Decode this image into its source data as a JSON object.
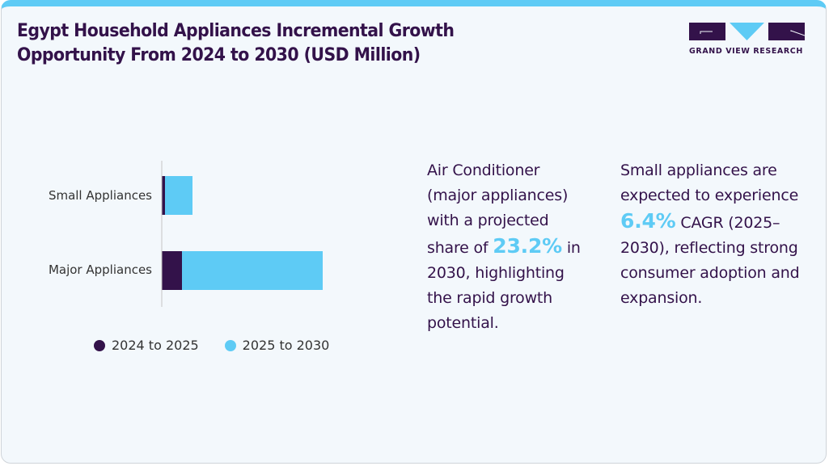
{
  "header": {
    "title_line1": "Egypt Household Appliances Incremental Growth",
    "title_line2": "Opportunity From 2024 to 2030 (USD Million)"
  },
  "logo": {
    "text": "GRAND VIEW RESEARCH",
    "icon": "gvr-logo-icon"
  },
  "colors": {
    "series_2024_2025": "#33124a",
    "series_2025_2030": "#5ecbf5",
    "accent": "#5ecbf5",
    "text_primary": "#33124a"
  },
  "chart_data": {
    "type": "bar",
    "orientation": "horizontal",
    "stacked": true,
    "title": "Egypt Household Appliances Incremental Growth Opportunity From 2024 to 2030 (USD Million)",
    "xlabel": "",
    "ylabel": "",
    "categories": [
      "Small Appliances",
      "Major Appliances"
    ],
    "series": [
      {
        "name": "2024 to 2025",
        "color": "#33124a",
        "values": [
          4,
          25
        ]
      },
      {
        "name": "2025 to 2030",
        "color": "#5ecbf5",
        "values": [
          34,
          174
        ]
      }
    ],
    "value_note": "Values are relative estimates; no axis ticks are shown in the chart",
    "xlim": [
      0,
      200
    ],
    "grid": false,
    "legend_position": "bottom"
  },
  "legend": [
    {
      "label": "2024 to 2025",
      "color": "#33124a"
    },
    {
      "label": "2025 to 2030",
      "color": "#5ecbf5"
    }
  ],
  "insights": [
    {
      "before": "Air Conditioner (major appliances) with a projected share of ",
      "highlight": "23.2%",
      "after": " in 2030, highlighting the rapid growth potential."
    },
    {
      "before": "Small appliances are expected to experience ",
      "highlight": "6.4%",
      "after": " CAGR (2025–2030), reflecting strong consumer adoption and expansion."
    }
  ]
}
